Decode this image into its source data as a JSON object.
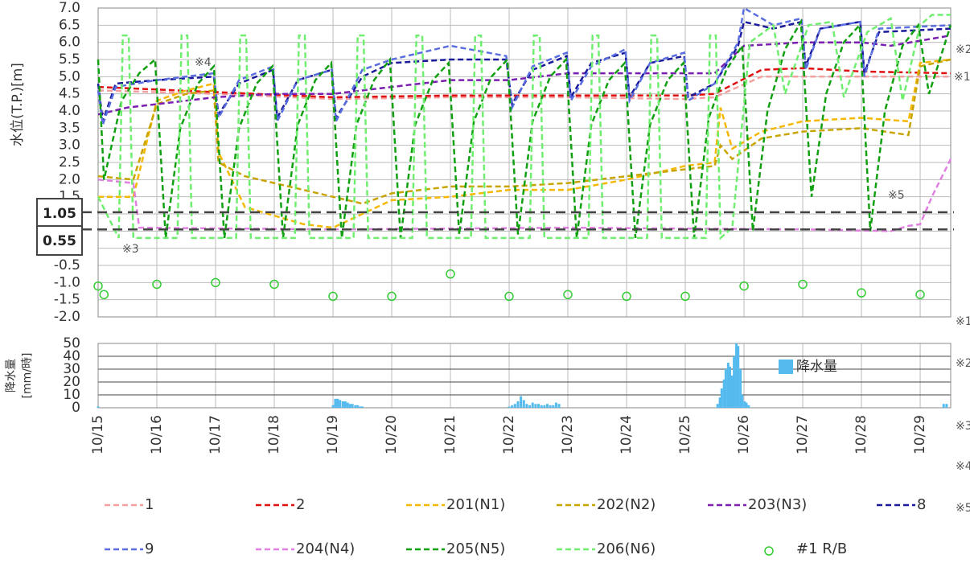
{
  "chart_data": [
    {
      "type": "line",
      "y_label": "水位(T.P.)[m]",
      "xlim": [
        0,
        14.52
      ],
      "xticks": [
        {
          "value": 0,
          "label": "10/15"
        },
        {
          "value": 1,
          "label": "10/16"
        },
        {
          "value": 2,
          "label": "10/17"
        },
        {
          "value": 3,
          "label": "10/18"
        },
        {
          "value": 4,
          "label": "10/19"
        },
        {
          "value": 5,
          "label": "10/20"
        },
        {
          "value": 6,
          "label": "10/21"
        },
        {
          "value": 7,
          "label": "10/22"
        },
        {
          "value": 8,
          "label": "10/23"
        },
        {
          "value": 9,
          "label": "10/24"
        },
        {
          "value": 10,
          "label": "10/25"
        },
        {
          "value": 11,
          "label": "10/26"
        },
        {
          "value": 12,
          "label": "10/27"
        },
        {
          "value": 13,
          "label": "10/28"
        },
        {
          "value": 14,
          "label": "10/29"
        }
      ],
      "ylim": [
        -2,
        7
      ],
      "yticks": [
        {
          "value": -2,
          "label": "-2.0"
        },
        {
          "value": -1.5,
          "label": "-1.5"
        },
        {
          "value": -1,
          "label": "-1.0"
        },
        {
          "value": -0.5,
          "label": "-0.5"
        },
        {
          "value": 0,
          "label": "0.0"
        },
        {
          "value": 0.5,
          "label": "0.5"
        },
        {
          "value": 1,
          "label": "1.0"
        },
        {
          "value": 1.5,
          "label": "1.5"
        },
        {
          "value": 2,
          "label": "2.0"
        },
        {
          "value": 2.5,
          "label": "2.5"
        },
        {
          "value": 3,
          "label": "3.0"
        },
        {
          "value": 3.5,
          "label": "3.5"
        },
        {
          "value": 4,
          "label": "4.0"
        },
        {
          "value": 4.5,
          "label": "4.5"
        },
        {
          "value": 5,
          "label": "5.0"
        },
        {
          "value": 5.5,
          "label": "5.5"
        },
        {
          "value": 6,
          "label": "6.0"
        },
        {
          "value": 6.5,
          "label": "6.5"
        },
        {
          "value": 7,
          "label": "7.0"
        }
      ],
      "grid": true,
      "reference_lines": [
        {
          "value": 1.05,
          "label": "1.05"
        },
        {
          "value": 0.55,
          "label": "0.55"
        }
      ],
      "annotations": [
        "※4",
        "※3",
        "※5",
        "※2",
        "※1",
        "※1",
        "※2",
        "※3",
        "※4",
        "※5"
      ],
      "series": [
        {
          "name": "1",
          "color": "#f4a0a0",
          "x": [
            0,
            2,
            4,
            6,
            8,
            10,
            10.5,
            11.3,
            12,
            13,
            14.52
          ],
          "values": [
            4.6,
            4.5,
            4.35,
            4.4,
            4.4,
            4.35,
            4.4,
            5.0,
            5.0,
            5.0,
            5.0
          ]
        },
        {
          "name": "2",
          "color": "#e01010",
          "x": [
            0,
            2,
            4,
            6,
            8,
            10,
            10.5,
            11.3,
            12,
            13,
            14.52
          ],
          "values": [
            4.7,
            4.55,
            4.4,
            4.45,
            4.45,
            4.45,
            4.5,
            5.2,
            5.25,
            5.15,
            5.1
          ]
        },
        {
          "name": "201(N1)",
          "color": "#f5b800",
          "x": [
            0,
            0.6,
            1.0,
            1.5,
            1.97,
            2.05,
            2.5,
            3.5,
            4.0,
            4.5,
            5.0,
            6.0,
            7.0,
            8.0,
            9.0,
            9.5,
            10.0,
            10.5,
            10.6,
            10.8,
            11.3,
            12.0,
            13.0,
            13.8,
            14.0,
            14.52
          ],
          "values": [
            1.5,
            1.5,
            4.3,
            4.6,
            4.8,
            2.8,
            1.2,
            0.7,
            0.6,
            1.0,
            1.4,
            1.5,
            1.7,
            1.7,
            2.0,
            2.2,
            2.4,
            2.5,
            4.1,
            2.9,
            3.4,
            3.7,
            3.8,
            3.7,
            5.4,
            5.5
          ]
        },
        {
          "name": "202(N2)",
          "color": "#c8a400",
          "x": [
            0,
            0.6,
            1.0,
            1.5,
            1.97,
            2.05,
            2.5,
            3.5,
            4.0,
            4.5,
            5.0,
            6.0,
            7.0,
            8.0,
            9.0,
            9.5,
            10.0,
            10.5,
            10.6,
            10.8,
            11.3,
            12.0,
            13.0,
            13.8,
            14.0,
            14.52
          ],
          "values": [
            2.1,
            2.0,
            4.2,
            4.5,
            4.6,
            2.5,
            2.1,
            1.7,
            1.5,
            1.3,
            1.6,
            1.8,
            1.8,
            1.9,
            2.1,
            2.2,
            2.3,
            2.4,
            3.0,
            2.6,
            3.2,
            3.4,
            3.5,
            3.3,
            5.3,
            5.5
          ]
        },
        {
          "name": "203(N3)",
          "color": "#7a1fb0",
          "x": [
            0,
            0.5,
            1,
            2,
            3,
            4,
            5,
            6,
            7,
            8,
            10,
            10.5,
            11,
            12,
            13,
            13.5,
            14.52
          ],
          "values": [
            3.9,
            4.1,
            4.2,
            4.4,
            4.5,
            4.5,
            4.7,
            4.9,
            4.9,
            5.1,
            5.1,
            5.1,
            5.9,
            6.0,
            6.0,
            5.9,
            6.2
          ]
        },
        {
          "name": "8",
          "color": "#1a1a9a",
          "x": [
            0,
            0.08,
            0.3,
            1.0,
            1.97,
            2.05,
            2.4,
            2.98,
            3.05,
            3.4,
            3.98,
            4.05,
            4.5,
            5.0,
            6.0,
            6.95,
            7.05,
            7.4,
            7.98,
            8.05,
            8.4,
            8.98,
            9.05,
            9.4,
            9.98,
            10.05,
            10.5,
            10.9,
            11.0,
            11.5,
            11.98,
            12.05,
            12.3,
            12.98,
            13.05,
            13.3,
            14.52
          ],
          "values": [
            4.8,
            3.7,
            4.8,
            4.9,
            5.0,
            3.9,
            4.8,
            5.2,
            3.8,
            4.9,
            5.2,
            3.8,
            5.0,
            5.4,
            5.5,
            5.5,
            4.2,
            5.2,
            5.6,
            4.4,
            5.4,
            5.7,
            4.4,
            5.4,
            5.6,
            4.4,
            4.8,
            5.9,
            6.6,
            6.4,
            6.6,
            5.3,
            6.4,
            6.6,
            5.1,
            6.3,
            6.4
          ]
        },
        {
          "name": "9",
          "color": "#5a6ee0",
          "x": [
            0,
            0.08,
            0.3,
            1.0,
            1.97,
            2.05,
            2.4,
            2.98,
            3.05,
            3.4,
            3.98,
            4.05,
            4.5,
            5.0,
            6.0,
            6.95,
            7.05,
            7.4,
            7.98,
            8.05,
            8.4,
            8.98,
            9.05,
            9.4,
            9.98,
            10.05,
            10.5,
            10.9,
            11.0,
            11.5,
            11.98,
            12.05,
            12.3,
            12.98,
            13.05,
            13.3,
            14.52
          ],
          "values": [
            4.6,
            3.6,
            4.7,
            4.9,
            5.1,
            3.8,
            4.9,
            5.3,
            3.7,
            4.9,
            5.2,
            3.7,
            5.2,
            5.5,
            5.9,
            5.6,
            4.1,
            5.3,
            5.7,
            4.3,
            5.3,
            5.8,
            4.3,
            5.4,
            5.7,
            4.3,
            4.8,
            6.0,
            7.0,
            6.5,
            6.7,
            5.2,
            6.4,
            6.6,
            5.0,
            6.4,
            6.5
          ]
        },
        {
          "name": "204(N4)",
          "color": "#e080e0",
          "x": [
            0,
            0.6,
            0.7,
            4,
            8,
            12,
            13.5,
            13.8,
            14.0,
            14.2,
            14.52
          ],
          "values": [
            2.0,
            1.9,
            0.6,
            0.55,
            0.6,
            0.55,
            0.5,
            0.65,
            0.7,
            1.5,
            2.6
          ]
        },
        {
          "name": "205(N5)",
          "color": "#10a010",
          "x": [
            0,
            0.1,
            0.4,
            0.7,
            0.97,
            1.15,
            1.4,
            1.7,
            1.97,
            2.15,
            2.4,
            2.7,
            2.97,
            3.15,
            3.4,
            3.7,
            3.97,
            4.15,
            4.4,
            4.7,
            4.97,
            5.15,
            5.4,
            5.7,
            5.97,
            6.15,
            6.4,
            6.7,
            6.97,
            7.15,
            7.4,
            7.7,
            7.97,
            8.15,
            8.4,
            8.7,
            8.97,
            9.15,
            9.4,
            9.7,
            9.97,
            10.15,
            10.4,
            10.7,
            10.97,
            11.15,
            11.4,
            11.7,
            11.97,
            12.15,
            12.4,
            12.7,
            12.97,
            13.15,
            13.4,
            13.7,
            13.97,
            14.15,
            14.52
          ],
          "values": [
            5.5,
            2.0,
            4.3,
            5.1,
            5.5,
            0.3,
            3.5,
            4.8,
            5.3,
            0.3,
            3.5,
            4.8,
            5.3,
            0.3,
            3.6,
            4.9,
            5.4,
            0.3,
            3.6,
            4.9,
            5.5,
            0.3,
            3.6,
            4.9,
            5.4,
            0.4,
            3.7,
            5.0,
            5.5,
            0.4,
            3.7,
            5.0,
            5.5,
            0.3,
            3.6,
            4.9,
            5.4,
            0.3,
            3.6,
            4.9,
            5.4,
            0.3,
            3.8,
            5.2,
            5.9,
            0.5,
            4.0,
            5.8,
            6.6,
            1.5,
            4.5,
            6.0,
            6.5,
            0.5,
            4.0,
            5.9,
            6.5,
            4.5,
            6.5
          ]
        },
        {
          "name": "206(N6)",
          "color": "#70ee70",
          "x": [
            0,
            0.35,
            0.42,
            0.52,
            0.6,
            1.35,
            1.42,
            1.52,
            1.6,
            2.35,
            2.42,
            2.52,
            2.6,
            3.35,
            3.42,
            3.52,
            3.6,
            4.35,
            4.42,
            4.52,
            4.6,
            5.35,
            5.42,
            5.52,
            5.6,
            6.35,
            6.42,
            6.52,
            6.6,
            7.35,
            7.42,
            7.52,
            7.6,
            8.35,
            8.42,
            8.52,
            8.6,
            9.35,
            9.42,
            9.52,
            9.6,
            10.35,
            10.42,
            10.52,
            10.6,
            10.8,
            11.1,
            11.5,
            11.7,
            12.1,
            12.5,
            12.7,
            13.1,
            13.5,
            13.7,
            14.0,
            14.2,
            14.52
          ],
          "values": [
            1.5,
            0.3,
            6.2,
            6.2,
            0.3,
            0.3,
            6.2,
            6.2,
            0.3,
            0.3,
            6.2,
            6.2,
            0.3,
            0.3,
            6.2,
            6.2,
            0.3,
            0.3,
            6.2,
            6.2,
            0.3,
            0.3,
            6.2,
            6.2,
            0.3,
            0.3,
            6.2,
            6.2,
            0.3,
            0.3,
            6.2,
            6.2,
            0.3,
            0.3,
            6.2,
            6.2,
            0.3,
            0.3,
            6.2,
            6.2,
            0.3,
            0.3,
            6.2,
            6.2,
            0.3,
            0.6,
            6.0,
            6.5,
            4.5,
            6.5,
            6.6,
            4.4,
            6.3,
            6.7,
            4.3,
            6.5,
            6.8,
            6.8
          ]
        },
        {
          "name": "#1 R/B",
          "color": "#33cc33",
          "type": "scatter",
          "x": [
            0,
            0.1,
            1,
            2,
            3,
            4,
            5,
            6,
            7,
            8,
            9,
            10,
            11,
            12,
            13,
            14
          ],
          "values": [
            -1.1,
            -1.35,
            -1.05,
            -1.0,
            -1.05,
            -1.4,
            -1.4,
            -0.75,
            -1.4,
            -1.35,
            -1.4,
            -1.4,
            -1.1,
            -1.05,
            -1.3,
            -1.35
          ]
        }
      ]
    },
    {
      "type": "bar",
      "y_label": [
        "降水量",
        "[mm/時]"
      ],
      "xlim": [
        0,
        14.52
      ],
      "ylim": [
        0,
        50
      ],
      "yticks": [
        0,
        10,
        20,
        30,
        40,
        50
      ],
      "grid": true,
      "series": [
        {
          "name": "降水量",
          "color": "#55bbee",
          "x": [
            0.0,
            4.0,
            4.04,
            4.08,
            4.12,
            4.17,
            4.21,
            4.25,
            4.29,
            4.33,
            4.38,
            4.42,
            4.46,
            4.5,
            7.0,
            7.05,
            7.1,
            7.15,
            7.2,
            7.25,
            7.3,
            7.35,
            7.4,
            7.45,
            7.5,
            7.55,
            7.6,
            7.65,
            7.7,
            7.75,
            7.8,
            7.85,
            10.55,
            10.59,
            10.62,
            10.66,
            10.69,
            10.73,
            10.76,
            10.8,
            10.83,
            10.87,
            10.9,
            10.94,
            10.97,
            11.01,
            11.04,
            11.08,
            14.4,
            14.45
          ],
          "values": [
            1,
            2,
            7,
            7,
            6,
            5,
            5,
            4,
            3,
            3,
            2,
            2,
            1,
            1,
            1,
            2,
            3,
            5,
            9,
            6,
            3,
            2,
            4,
            3,
            3,
            2,
            2,
            3,
            2,
            2,
            4,
            3,
            3,
            8,
            15,
            22,
            30,
            35,
            32,
            25,
            40,
            50,
            48,
            30,
            10,
            5,
            4,
            2,
            3,
            3
          ]
        }
      ]
    }
  ]
}
